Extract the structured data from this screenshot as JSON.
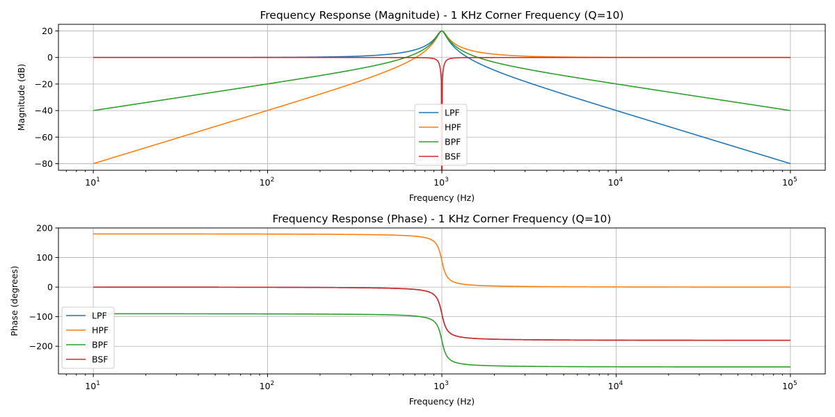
{
  "chart_data": [
    {
      "type": "line",
      "title": "Frequency Response (Magnitude) - 1 KHz Corner Frequency (Q=10)",
      "xlabel": "Frequency (Hz)",
      "ylabel": "Magnitude (dB)",
      "xscale": "log",
      "xlim": [
        10,
        100000
      ],
      "ylim": [
        -85,
        25
      ],
      "xticks": [
        10,
        100,
        1000,
        10000,
        100000
      ],
      "xtick_labels": [
        [
          "10",
          "1"
        ],
        [
          "10",
          "2"
        ],
        [
          "10",
          "3"
        ],
        [
          "10",
          "4"
        ],
        [
          "10",
          "5"
        ]
      ],
      "yticks": [
        -80,
        -60,
        -40,
        -20,
        0,
        20
      ],
      "ytick_labels": [
        "−80",
        "−60",
        "−40",
        "−20",
        "0",
        "20"
      ],
      "grid": true,
      "legend_position": "lower-center",
      "fc": 1000,
      "q": 10,
      "series": [
        {
          "name": "LPF",
          "color": "#1f77b4",
          "kind": "lpf"
        },
        {
          "name": "HPF",
          "color": "#ff7f0e",
          "kind": "hpf"
        },
        {
          "name": "BPF",
          "color": "#2ca02c",
          "kind": "bpf"
        },
        {
          "name": "BSF",
          "color": "#d62728",
          "kind": "bsf"
        }
      ]
    },
    {
      "type": "line",
      "title": "Frequency Response (Phase) - 1 KHz Corner Frequency (Q=10)",
      "xlabel": "Frequency (Hz)",
      "ylabel": "Phase (degrees)",
      "xscale": "log",
      "xlim": [
        10,
        100000
      ],
      "ylim": [
        -293.5,
        200
      ],
      "xticks": [
        10,
        100,
        1000,
        10000,
        100000
      ],
      "xtick_labels": [
        [
          "10",
          "1"
        ],
        [
          "10",
          "2"
        ],
        [
          "10",
          "3"
        ],
        [
          "10",
          "4"
        ],
        [
          "10",
          "5"
        ]
      ],
      "yticks": [
        -200,
        -100,
        0,
        100,
        200
      ],
      "ytick_labels": [
        "−200",
        "−100",
        "0",
        "100",
        "200"
      ],
      "grid": true,
      "legend_position": "lower-left",
      "fc": 1000,
      "q": 10,
      "series": [
        {
          "name": "LPF",
          "color": "#1f77b4",
          "kind": "lpf"
        },
        {
          "name": "HPF",
          "color": "#ff7f0e",
          "kind": "hpf"
        },
        {
          "name": "BPF",
          "color": "#2ca02c",
          "kind": "bpf"
        },
        {
          "name": "BSF",
          "color": "#d62728",
          "kind": "bsf"
        }
      ]
    }
  ]
}
